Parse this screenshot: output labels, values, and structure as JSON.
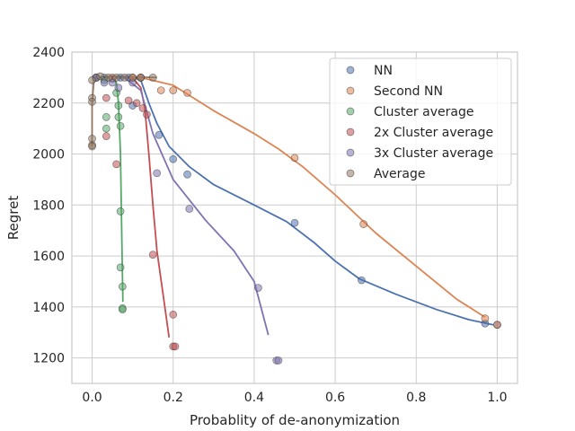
{
  "chart_data": {
    "type": "scatter",
    "title": "",
    "xlabel": "Probablity of de-anonymization",
    "ylabel": "Regret",
    "xlim": [
      -0.05,
      1.05
    ],
    "ylim": [
      1100,
      2400
    ],
    "xticks": [
      "0.0",
      "0.2",
      "0.4",
      "0.6",
      "0.8",
      "1.0"
    ],
    "xtick_values": [
      0,
      0.2,
      0.4,
      0.6,
      0.8,
      1.0
    ],
    "yticks": [
      "1200",
      "1400",
      "1600",
      "1800",
      "2000",
      "2200",
      "2400"
    ],
    "ytick_values": [
      1200,
      1400,
      1600,
      1800,
      2000,
      2200,
      2400
    ],
    "grid": true,
    "legend_position": "top-right",
    "series": [
      {
        "name": "NN",
        "color": "#4c72b0",
        "points": [
          [
            0.01,
            2300
          ],
          [
            0.03,
            2300
          ],
          [
            0.05,
            2295
          ],
          [
            0.07,
            2300
          ],
          [
            0.09,
            2300
          ],
          [
            0.1,
            2190
          ],
          [
            0.12,
            2300
          ],
          [
            0.165,
            2075
          ],
          [
            0.2,
            1980
          ],
          [
            0.235,
            1920
          ],
          [
            0.5,
            1730
          ],
          [
            0.665,
            1505
          ],
          [
            0.97,
            1335
          ],
          [
            1.0,
            1330
          ]
        ],
        "line": [
          [
            0.0,
            2300
          ],
          [
            0.1,
            2300
          ],
          [
            0.12,
            2290
          ],
          [
            0.14,
            2200
          ],
          [
            0.16,
            2120
          ],
          [
            0.19,
            2030
          ],
          [
            0.24,
            1950
          ],
          [
            0.3,
            1880
          ],
          [
            0.4,
            1800
          ],
          [
            0.48,
            1735
          ],
          [
            0.55,
            1650
          ],
          [
            0.6,
            1580
          ],
          [
            0.66,
            1510
          ],
          [
            0.75,
            1450
          ],
          [
            0.85,
            1390
          ],
          [
            0.93,
            1350
          ],
          [
            0.99,
            1330
          ]
        ]
      },
      {
        "name": "Second NN",
        "color": "#dd8452",
        "points": [
          [
            0.01,
            2300
          ],
          [
            0.05,
            2300
          ],
          [
            0.1,
            2300
          ],
          [
            0.12,
            2300
          ],
          [
            0.17,
            2250
          ],
          [
            0.2,
            2250
          ],
          [
            0.235,
            2240
          ],
          [
            0.5,
            1985
          ],
          [
            0.67,
            1725
          ],
          [
            0.97,
            1355
          ],
          [
            1.0,
            1330
          ]
        ],
        "line": [
          [
            0.0,
            2300
          ],
          [
            0.12,
            2300
          ],
          [
            0.2,
            2270
          ],
          [
            0.3,
            2170
          ],
          [
            0.4,
            2080
          ],
          [
            0.46,
            2020
          ],
          [
            0.52,
            1950
          ],
          [
            0.6,
            1840
          ],
          [
            0.7,
            1690
          ],
          [
            0.8,
            1560
          ],
          [
            0.9,
            1430
          ],
          [
            0.97,
            1360
          ]
        ]
      },
      {
        "name": "Cluster average",
        "color": "#55a868",
        "points": [
          [
            0.01,
            2300
          ],
          [
            0.03,
            2290
          ],
          [
            0.035,
            2145
          ],
          [
            0.035,
            2100
          ],
          [
            0.06,
            2240
          ],
          [
            0.065,
            2190
          ],
          [
            0.065,
            2145
          ],
          [
            0.07,
            2110
          ],
          [
            0.07,
            1775
          ],
          [
            0.07,
            1555
          ],
          [
            0.075,
            1480
          ],
          [
            0.075,
            1395
          ],
          [
            0.075,
            1390
          ]
        ],
        "line": [
          [
            0.0,
            2300
          ],
          [
            0.05,
            2300
          ],
          [
            0.06,
            2280
          ],
          [
            0.065,
            2200
          ],
          [
            0.07,
            2000
          ],
          [
            0.072,
            1800
          ],
          [
            0.074,
            1600
          ],
          [
            0.076,
            1420
          ]
        ]
      },
      {
        "name": "2x Cluster average",
        "color": "#c44e52",
        "points": [
          [
            0.035,
            2220
          ],
          [
            0.035,
            2070
          ],
          [
            0.06,
            1960
          ],
          [
            0.09,
            2210
          ],
          [
            0.11,
            2200
          ],
          [
            0.125,
            2180
          ],
          [
            0.135,
            2155
          ],
          [
            0.15,
            1605
          ],
          [
            0.2,
            1370
          ],
          [
            0.2,
            1245
          ],
          [
            0.205,
            1245
          ]
        ],
        "line": [
          [
            0.0,
            2300
          ],
          [
            0.1,
            2300
          ],
          [
            0.12,
            2260
          ],
          [
            0.13,
            2180
          ],
          [
            0.14,
            2000
          ],
          [
            0.15,
            1800
          ],
          [
            0.16,
            1620
          ],
          [
            0.175,
            1450
          ],
          [
            0.19,
            1280
          ]
        ]
      },
      {
        "name": "3x Cluster average",
        "color": "#8172b3",
        "points": [
          [
            0.01,
            2300
          ],
          [
            0.03,
            2280
          ],
          [
            0.05,
            2280
          ],
          [
            0.065,
            2260
          ],
          [
            0.1,
            2280
          ],
          [
            0.16,
            1925
          ],
          [
            0.24,
            1785
          ],
          [
            0.41,
            1475
          ],
          [
            0.455,
            1190
          ],
          [
            0.46,
            1190
          ]
        ],
        "line": [
          [
            0.0,
            2300
          ],
          [
            0.08,
            2300
          ],
          [
            0.12,
            2250
          ],
          [
            0.15,
            2080
          ],
          [
            0.2,
            1900
          ],
          [
            0.28,
            1740
          ],
          [
            0.35,
            1620
          ],
          [
            0.4,
            1500
          ],
          [
            0.435,
            1290
          ]
        ]
      },
      {
        "name": "Average",
        "color": "#937860",
        "points": [
          [
            0.0,
            2290
          ],
          [
            0.0,
            2220
          ],
          [
            0.0,
            2205
          ],
          [
            0.0,
            2060
          ],
          [
            0.0,
            2035
          ],
          [
            0.0,
            2030
          ],
          [
            0.02,
            2305
          ],
          [
            0.04,
            2300
          ],
          [
            0.06,
            2300
          ],
          [
            0.08,
            2300
          ],
          [
            0.1,
            2300
          ],
          [
            0.12,
            2300
          ],
          [
            0.15,
            2300
          ]
        ],
        "line": [
          [
            0.0,
            2030
          ],
          [
            0.0,
            2200
          ],
          [
            0.005,
            2300
          ],
          [
            0.05,
            2305
          ],
          [
            0.16,
            2300
          ]
        ]
      }
    ]
  }
}
